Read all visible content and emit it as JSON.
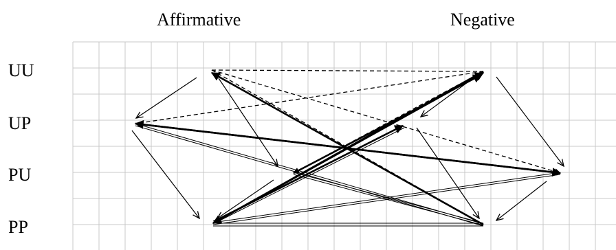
{
  "columns": {
    "affirmative": "Affirmative",
    "negative": "Negative"
  },
  "rows": {
    "uu": "UU",
    "up": "UP",
    "pu": "PU",
    "pp": "PP"
  },
  "colors": {
    "grid": "#c8c8c8",
    "ink": "#000000"
  }
}
